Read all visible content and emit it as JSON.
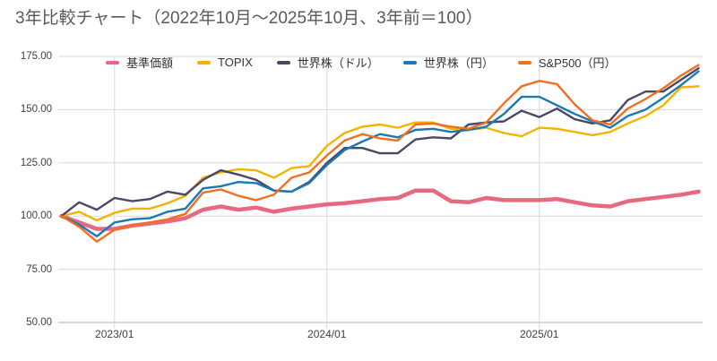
{
  "title": "3年比較チャート（2022年10月～2025年10月、3年前＝100）",
  "colors": {
    "background": "#ffffff",
    "title_text": "#595959",
    "axis_text": "#404040",
    "gridline": "#d9d9d9",
    "axis_line": "#b3b3b3",
    "legend_text": "#333333"
  },
  "y_axis": {
    "tick_labels": [
      "175.00",
      "150.00",
      "125.00",
      "100.00",
      "75.00",
      "50.00"
    ]
  },
  "x_axis": {
    "tick_labels": [
      "2023/01",
      "2024/01",
      "2025/01"
    ],
    "tick_month_indices": [
      3,
      15,
      27
    ]
  },
  "chart_data": {
    "type": "line",
    "title": "3年比較チャート（2022年10月～2025年10月、3年前＝100）",
    "xlabel": "",
    "ylabel": "",
    "ylim": [
      50,
      175
    ],
    "grid": true,
    "legend_position": "top",
    "x": [
      "2022/10",
      "2022/11",
      "2022/12",
      "2023/01",
      "2023/02",
      "2023/03",
      "2023/04",
      "2023/05",
      "2023/06",
      "2023/07",
      "2023/08",
      "2023/09",
      "2023/10",
      "2023/11",
      "2023/12",
      "2024/01",
      "2024/02",
      "2024/03",
      "2024/04",
      "2024/05",
      "2024/06",
      "2024/07",
      "2024/08",
      "2024/09",
      "2024/10",
      "2024/11",
      "2024/12",
      "2025/01",
      "2025/02",
      "2025/03",
      "2025/04",
      "2025/05",
      "2025/06",
      "2025/07",
      "2025/08",
      "2025/09",
      "2025/10"
    ],
    "series": [
      {
        "name": "基準価額",
        "color": "#e7697f",
        "line_width": 4.5,
        "values": [
          100,
          97,
          94,
          94,
          95.5,
          96.5,
          97.5,
          99,
          103,
          104.5,
          103,
          104,
          102,
          103.5,
          104.5,
          105.5,
          106,
          107,
          108,
          108.5,
          112,
          112,
          107,
          106.5,
          108.5,
          107.5,
          107.5,
          107.5,
          108,
          106.5,
          105,
          104.5,
          107,
          108,
          109,
          110,
          111.5
        ]
      },
      {
        "name": "TOPIX",
        "color": "#f5b301",
        "line_width": 2.4,
        "values": [
          100,
          102,
          98,
          101.5,
          103.5,
          103.5,
          106,
          109.5,
          118,
          120.5,
          122,
          121.5,
          118,
          122.5,
          123.5,
          133,
          139,
          142,
          143,
          141.5,
          144,
          144,
          141,
          140.5,
          141.5,
          139,
          137.5,
          141.5,
          141,
          139.5,
          138,
          139.5,
          143.5,
          147,
          152,
          160.5,
          161
        ]
      },
      {
        "name": "世界株（ドル）",
        "color": "#4b4766",
        "line_width": 2.4,
        "values": [
          100,
          106.5,
          103,
          108.5,
          107,
          108,
          111.5,
          110,
          117,
          121.5,
          119.5,
          117,
          112,
          111.5,
          116,
          125,
          132,
          132,
          129.5,
          129.5,
          136,
          137,
          136.5,
          143,
          144,
          144.5,
          149.5,
          146.5,
          150.5,
          145.5,
          143.5,
          145,
          154.5,
          158.5,
          158.5,
          164,
          169.5
        ]
      },
      {
        "name": "世界株（円）",
        "color": "#1b78b3",
        "line_width": 2.4,
        "values": [
          100,
          96,
          90.5,
          97,
          98.5,
          99,
          102,
          103.5,
          113,
          114,
          116,
          115.5,
          112,
          111.5,
          115.5,
          124,
          131,
          135,
          138.5,
          137,
          140.5,
          141,
          139.5,
          140.5,
          142,
          148,
          156,
          156,
          152,
          148,
          144.5,
          141.5,
          147,
          150,
          155.5,
          161.5,
          168
        ]
      },
      {
        "name": "S&P500（円）",
        "color": "#f26f20",
        "line_width": 2.4,
        "values": [
          100,
          95,
          88,
          93.5,
          95.5,
          97,
          98.5,
          101,
          111,
          112.5,
          109.5,
          107.5,
          110,
          118,
          120.5,
          128.5,
          135.5,
          138.5,
          136.5,
          135.5,
          143,
          143.5,
          142,
          141,
          144,
          153,
          161,
          163.5,
          162,
          152.5,
          145,
          143,
          150.5,
          155,
          160,
          166,
          171
        ]
      }
    ]
  }
}
